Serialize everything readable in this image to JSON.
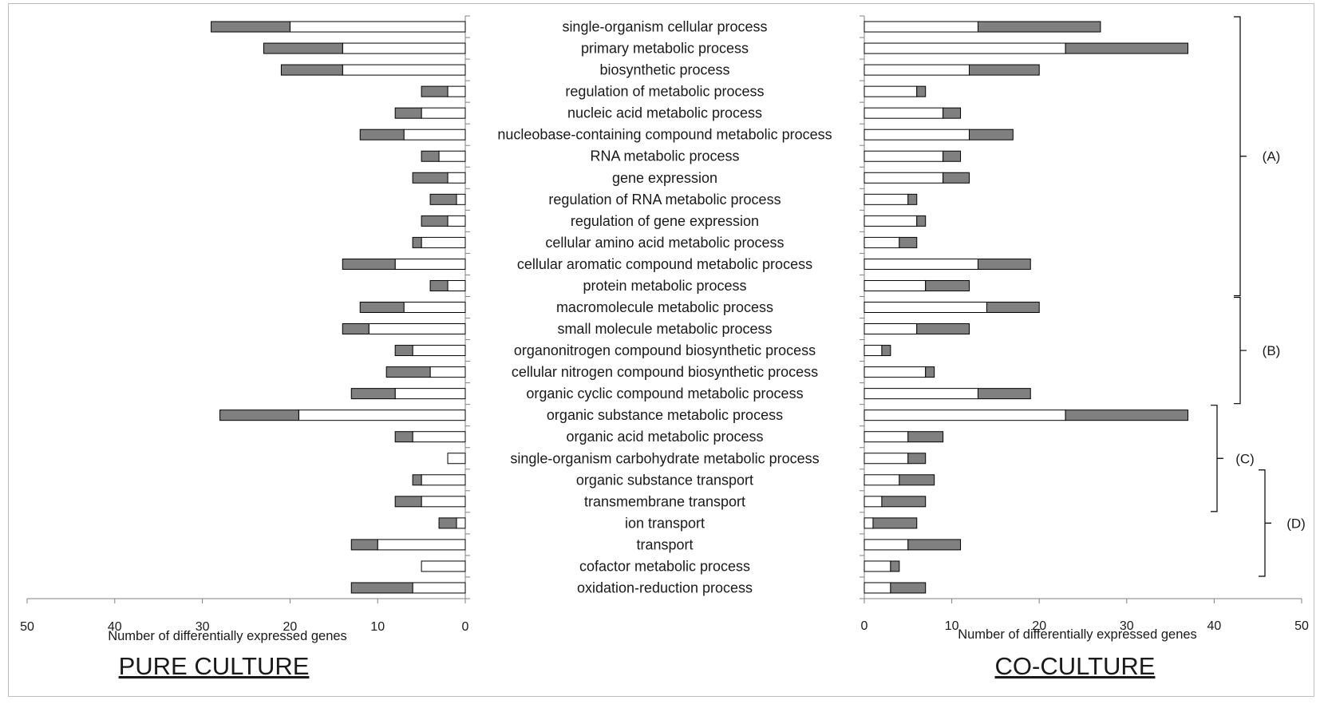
{
  "chart_data": {
    "type": "bar",
    "stacked": true,
    "orientation": "horizontal",
    "categories": [
      "single-organism cellular process",
      "primary metabolic process",
      "biosynthetic process",
      "regulation of metabolic process",
      "nucleic acid metabolic process",
      "nucleobase-containing compound metabolic process",
      "RNA metabolic process",
      "gene expression",
      "regulation of RNA metabolic process",
      "regulation of gene expression",
      "cellular amino acid metabolic process",
      "cellular aromatic compound metabolic process",
      "protein metabolic process",
      "macromolecule metabolic process",
      "small molecule metabolic process",
      "organonitrogen compound biosynthetic process",
      "cellular nitrogen compound biosynthetic process",
      "organic cyclic compound metabolic process",
      "organic substance metabolic process",
      "organic acid metabolic process",
      "single-organism carbohydrate metabolic process",
      "organic substance transport",
      "transmembrane transport",
      "ion transport",
      "transport",
      "cofactor metabolic process",
      "oxidation-reduction process"
    ],
    "panels": [
      {
        "title": "PURE CULTURE",
        "xlabel": "Number of differentially expressed genes",
        "xlim": [
          50,
          0
        ],
        "ticks": [
          "50",
          "40",
          "30",
          "20",
          "10",
          "0"
        ],
        "series": [
          {
            "color": "#ffffff",
            "values": [
              20,
              14,
              14,
              2,
              5,
              7,
              3,
              2,
              1,
              2,
              5,
              8,
              2,
              7,
              11,
              6,
              4,
              8,
              19,
              6,
              2,
              5,
              5,
              1,
              10,
              5,
              6
            ]
          },
          {
            "color": "#808080",
            "values": [
              9,
              9,
              7,
              3,
              3,
              5,
              2,
              4,
              3,
              3,
              1,
              6,
              2,
              5,
              3,
              2,
              5,
              5,
              9,
              2,
              0,
              1,
              3,
              2,
              3,
              0,
              7
            ]
          }
        ]
      },
      {
        "title": "CO-CULTURE",
        "xlabel": "Number of differentially expressed genes",
        "xlim": [
          0,
          50
        ],
        "ticks": [
          "0",
          "10",
          "20",
          "30",
          "40",
          "50"
        ],
        "series": [
          {
            "color": "#ffffff",
            "values": [
              13,
              23,
              12,
              6,
              9,
              12,
              9,
              9,
              5,
              6,
              4,
              13,
              7,
              14,
              6,
              2,
              7,
              13,
              23,
              5,
              5,
              4,
              2,
              1,
              5,
              3,
              3
            ]
          },
          {
            "color": "#808080",
            "values": [
              14,
              14,
              8,
              1,
              2,
              5,
              2,
              3,
              1,
              1,
              2,
              6,
              5,
              6,
              6,
              1,
              1,
              6,
              14,
              4,
              2,
              4,
              5,
              5,
              6,
              1,
              4
            ]
          }
        ]
      }
    ],
    "groups": [
      {
        "label": "(A)",
        "from": 0,
        "to": 12
      },
      {
        "label": "(B)",
        "from": 13,
        "to": 17
      },
      {
        "label": "(C)",
        "from": 18,
        "to": 22
      },
      {
        "label": "(D)",
        "from": 21,
        "to": 25
      }
    ]
  }
}
